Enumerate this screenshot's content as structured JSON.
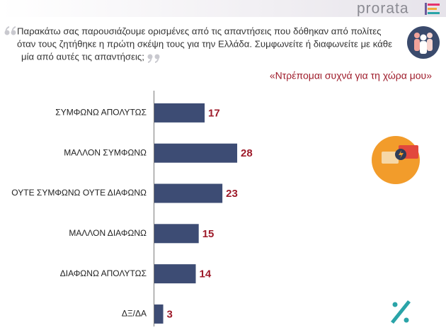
{
  "logo": "prorata",
  "question_lines": [
    "Παρακάτω σας παρουσιάζουμε ορισμένες από τις απαντήσεις που δόθηκαν από πολίτες",
    "όταν τους ζητήθηκε η πρώτη σκέψη τους για την Ελλάδα. Συμφωνείτε ή διαφωνείτε με κάθε",
    "μία από αυτές τις απαντήσεις;"
  ],
  "chart_data": {
    "type": "hbar",
    "title": "«Ντρέπομαι συχνά για τη χώρα μου»",
    "categories": [
      "ΣΥΜΦΩΝΩ ΑΠΟΛΥΤΩΣ",
      "ΜΑΛΛΟΝ ΣΥΜΦΩΝΩ",
      "ΟΥΤΕ ΣΥΜΦΩΝΩ ΟΥΤΕ ΔΙΑΦΩΝΩ",
      "ΜΑΛΛΟΝ ΔΙΑΦΩΝΩ",
      "ΔΙΑΦΩΝΩ ΑΠΟΛΥΤΩΣ",
      "ΔΞ/ΔΑ"
    ],
    "values": [
      17,
      28,
      23,
      15,
      14,
      3
    ],
    "color": "#3d4c74",
    "label_color": "#9e1b2a"
  }
}
